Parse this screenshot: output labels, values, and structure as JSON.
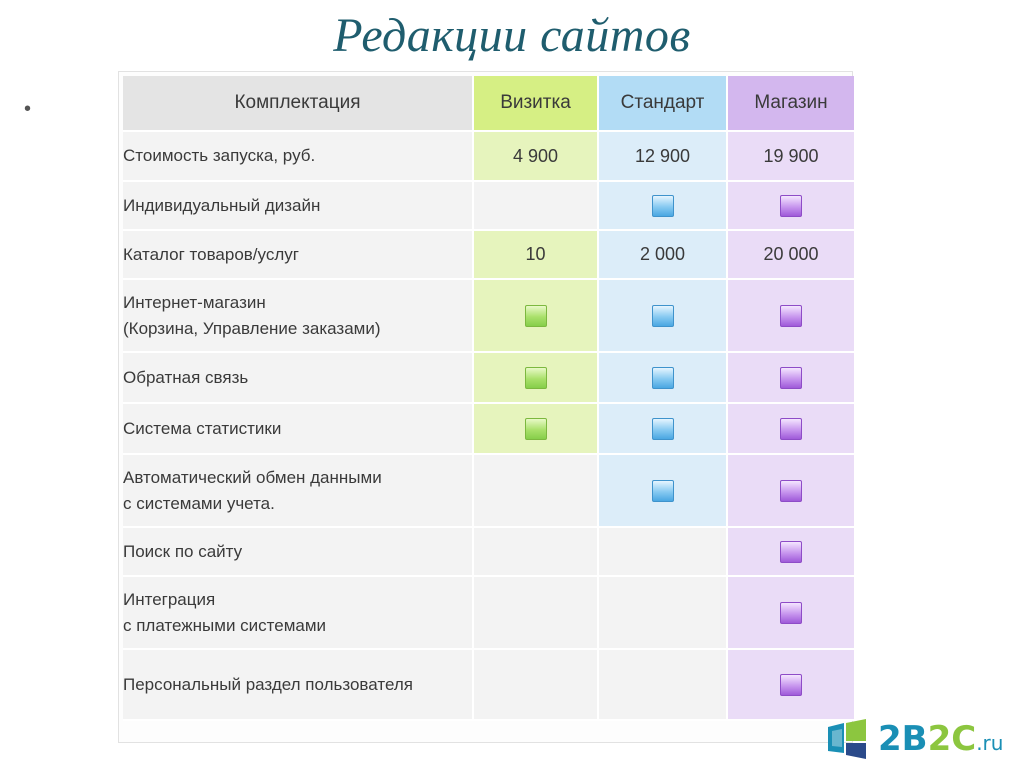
{
  "title": "Редакции сайтов",
  "bullet": "•",
  "table": {
    "header": {
      "feature": "Комплектация",
      "plans": [
        "Визитка",
        "Стандарт",
        "Магазин"
      ]
    },
    "rows": [
      {
        "feature": "Стоимость запуска, руб.",
        "values": [
          "4 900",
          "12 900",
          "19 900"
        ]
      },
      {
        "feature": "Индивидуальный дизайн",
        "checks": [
          false,
          true,
          true
        ]
      },
      {
        "feature": "Каталог товаров/услуг",
        "values": [
          "10",
          "2 000",
          "20 000"
        ]
      },
      {
        "feature_lines": [
          "Интернет-магазин",
          "(Корзина, Управление заказами)"
        ],
        "checks": [
          true,
          true,
          true
        ]
      },
      {
        "feature": "Обратная связь",
        "checks": [
          true,
          true,
          true
        ]
      },
      {
        "feature": "Система статистики",
        "checks": [
          true,
          true,
          true
        ]
      },
      {
        "feature_lines": [
          "Автоматический обмен данными",
          "с системами учета."
        ],
        "checks": [
          false,
          true,
          true
        ]
      },
      {
        "feature": "Поиск по сайту",
        "checks": [
          false,
          false,
          true
        ]
      },
      {
        "feature_lines": [
          "Интеграция",
          "с платежными системами"
        ],
        "checks": [
          false,
          false,
          true
        ]
      },
      {
        "feature": "Персональный раздел пользователя",
        "checks": [
          false,
          false,
          true
        ]
      }
    ]
  },
  "logo": {
    "a": "2B",
    "b": "2C",
    "c": "",
    "ru": ".ru"
  },
  "colors": {
    "title": "#1f5d6e",
    "vizitka": "#d6ef84",
    "standart": "#b2dcf5",
    "magazin": "#d3b7ee",
    "logo_blue": "#1a8fb5",
    "logo_green": "#8cc63f"
  },
  "icons": {
    "check_vizitka": "green-check-square-icon",
    "check_standart": "blue-check-square-icon",
    "check_magazin": "purple-check-square-icon"
  }
}
